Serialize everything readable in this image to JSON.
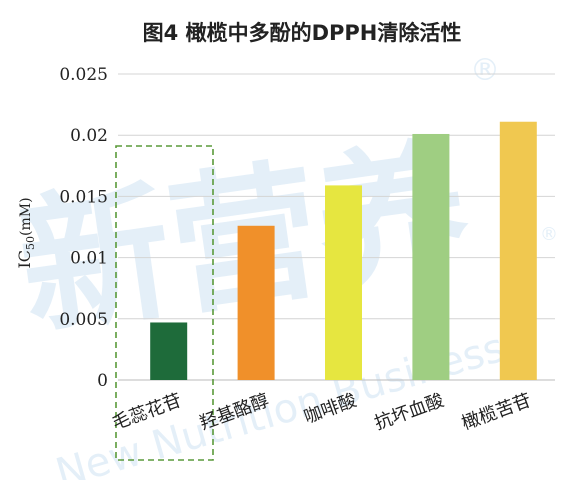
{
  "chart_data": {
    "type": "bar",
    "title": "图4 橄榄中多酚的DPPH清除活性",
    "ylabel": "IC",
    "ylabel_sub": "50",
    "ylabel_unit": "(mM)",
    "categories": [
      "毛蕊花苷",
      "羟基酪醇",
      "咖啡酸",
      "抗坏血酸",
      "橄榄苦苷"
    ],
    "values": [
      0.0047,
      0.0126,
      0.0159,
      0.0201,
      0.0211
    ],
    "colors": [
      "#1e6b3a",
      "#f0902a",
      "#e6e640",
      "#9fce82",
      "#f0c850"
    ],
    "ylim": [
      0,
      0.025
    ],
    "yticks": [
      0,
      0.005,
      0.01,
      0.015,
      0.02,
      0.025
    ],
    "ytick_labels": [
      "0",
      "0.005",
      "0.01",
      "0.015",
      "0.02",
      "0.025"
    ],
    "grid": true,
    "highlight_category": "毛蕊花苷",
    "highlight_color": "#5a9a3a"
  },
  "watermark": {
    "cn": "新营养",
    "en": "New Nutrition Business",
    "mark": "®"
  }
}
